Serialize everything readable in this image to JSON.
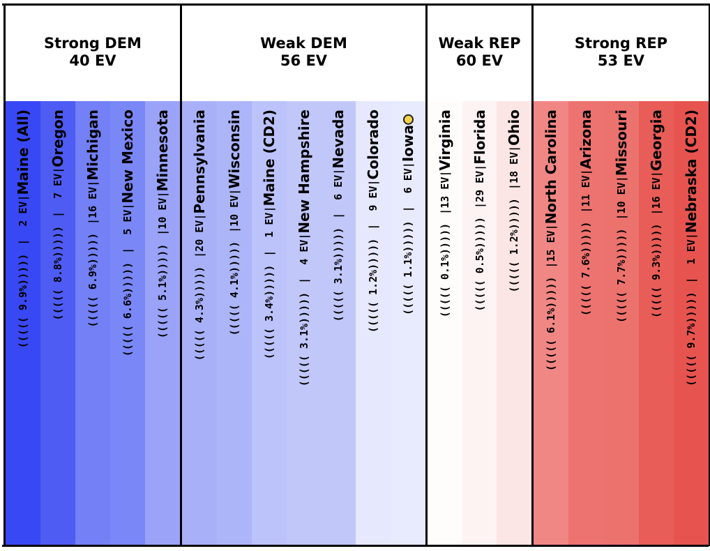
{
  "chart_data": {
    "type": "table",
    "groups": [
      {
        "label": "Strong DEM",
        "ev": "40 EV",
        "states": [
          {
            "name": "Maine (All)",
            "ev": "|  2 EV|",
            "margin": "((((( 9.9%)))))",
            "color": "#3848f4"
          },
          {
            "name": "Oregon",
            "ev": "|  7 EV|",
            "margin": "((((( 8.8%)))))",
            "color": "#4e5cf4"
          },
          {
            "name": "Michigan",
            "ev": "|16 EV|",
            "margin": "((((( 6.9%)))))",
            "color": "#7380f6"
          },
          {
            "name": "New Mexico",
            "ev": "|  5 EV|",
            "margin": "((((( 6.6%)))))",
            "color": "#7a87f7"
          },
          {
            "name": "Minnesota",
            "ev": "|10 EV|",
            "margin": "((((( 5.1%)))))",
            "color": "#9aa3f8"
          }
        ]
      },
      {
        "label": "Weak DEM",
        "ev": "56 EV",
        "states": [
          {
            "name": "Pennsylvania",
            "ev": "|20 EV|",
            "margin": "((((( 4.3%)))))",
            "color": "#a8b1f8"
          },
          {
            "name": "Wisconsin",
            "ev": "|10 EV|",
            "margin": "((((( 4.1%)))))",
            "color": "#adb5f9"
          },
          {
            "name": "Maine (CD2)",
            "ev": "|  1 EV|",
            "margin": "((((( 3.4%)))))",
            "color": "#bcc2fa"
          },
          {
            "name": "New Hampshire",
            "ev": "|  4 EV|",
            "margin": "((((( 3.1%)))))",
            "color": "#c2c7fa"
          },
          {
            "name": "Nevada",
            "ev": "|  6 EV|",
            "margin": "((((( 3.1%)))))",
            "color": "#c2c7fa"
          },
          {
            "name": "Colorado",
            "ev": "|  9 EV|",
            "margin": "((((( 1.2%)))))",
            "color": "#e6e8fd"
          },
          {
            "name": "Iowa",
            "ev": "|  6 EV|",
            "margin": "((((( 1.1%)))))",
            "color": "#e8eafd",
            "marker": true
          }
        ]
      },
      {
        "label": "Weak REP",
        "ev": "60 EV",
        "states": [
          {
            "name": "Virginia",
            "ev": "|13 EV|",
            "margin": "((((( 0.1%)))))",
            "color": "#fffcfc"
          },
          {
            "name": "Florida",
            "ev": "|29 EV|",
            "margin": "((((( 0.5%)))))",
            "color": "#fdf3f3"
          },
          {
            "name": "Ohio",
            "ev": "|18 EV|",
            "margin": "((((( 1.2%)))))",
            "color": "#fbe6e5"
          }
        ]
      },
      {
        "label": "Strong REP",
        "ev": "53 EV",
        "states": [
          {
            "name": "North Carolina",
            "ev": "|15 EV|",
            "margin": "((((( 6.1%)))))",
            "color": "#f08784"
          },
          {
            "name": "Arizona",
            "ev": "|11 EV|",
            "margin": "((((( 7.6%)))))",
            "color": "#ec736f"
          },
          {
            "name": "Missouri",
            "ev": "|10 EV|",
            "margin": "((((( 7.7%)))))",
            "color": "#ec726e"
          },
          {
            "name": "Georgia",
            "ev": "|16 EV|",
            "margin": "((((( 9.3%)))))",
            "color": "#e85d58"
          },
          {
            "name": "Nebraska (CD2)",
            "ev": "|  1 EV|",
            "margin": "((((( 9.7%)))))",
            "color": "#e7544f"
          }
        ]
      }
    ]
  }
}
